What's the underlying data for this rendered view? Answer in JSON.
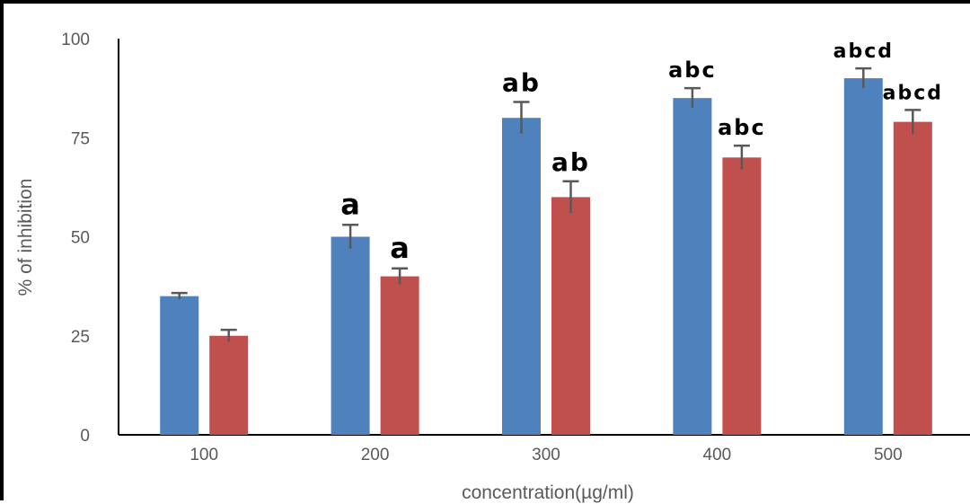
{
  "chart_data": {
    "type": "bar",
    "title": "",
    "xlabel": "concentration(µg/ml)",
    "ylabel": "% of inhibition",
    "categories": [
      "100",
      "200",
      "300",
      "400",
      "500"
    ],
    "ylim": [
      0,
      100
    ],
    "yticks": [
      "0",
      "25",
      "50",
      "75",
      "100"
    ],
    "grid": false,
    "legend": "none",
    "series": [
      {
        "color": "#4f81bd",
        "values": [
          35,
          50,
          80,
          85,
          90
        ],
        "errors": [
          0.8,
          3,
          4,
          2.5,
          2.5
        ],
        "annotations": [
          "",
          "a",
          "ab",
          "abc",
          "abcd"
        ]
      },
      {
        "color": "#c0504d",
        "values": [
          25,
          40,
          60,
          70,
          79
        ],
        "errors": [
          1.5,
          2,
          4,
          3,
          3
        ],
        "annotations": [
          "",
          "a",
          "ab",
          "abc",
          "abcd"
        ]
      }
    ]
  }
}
